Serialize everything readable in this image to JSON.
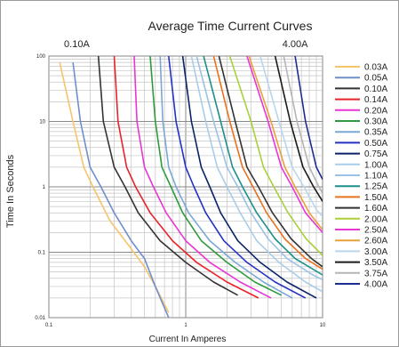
{
  "chart_data": {
    "type": "line",
    "title": "Average Time Current Curves",
    "xlabel": "Current In Amperes",
    "ylabel": "Time In Seconds",
    "xscale": "log",
    "yscale": "log",
    "xlim": [
      0.1,
      10
    ],
    "ylim": [
      0.01,
      100
    ],
    "x_ticks": [
      "0.1",
      "1",
      "10"
    ],
    "y_ticks": [
      "100",
      "10",
      "1",
      "0.1",
      "0.01"
    ],
    "grid": true,
    "legend_position": "right",
    "annotations": [
      {
        "text": "0.10A",
        "x": 0.16
      },
      {
        "text": "4.00A",
        "x": 6.3
      }
    ],
    "series": [
      {
        "name": "0.03A",
        "color": "#f7c36b",
        "x": [
          0.12,
          0.15,
          0.18,
          0.21,
          0.28,
          0.38,
          0.5,
          0.6,
          0.75
        ],
        "y": [
          80,
          10,
          2,
          1,
          0.3,
          0.13,
          0.06,
          0.03,
          0.012
        ]
      },
      {
        "name": "0.05A",
        "color": "#6f8fcc",
        "x": [
          0.15,
          0.17,
          0.2,
          0.24,
          0.3,
          0.4,
          0.5,
          0.6,
          0.75
        ],
        "y": [
          80,
          10,
          2,
          1,
          0.4,
          0.15,
          0.08,
          0.03,
          0.01
        ]
      },
      {
        "name": "0.10A",
        "color": "#333333",
        "x": [
          0.23,
          0.25,
          0.3,
          0.36,
          0.45,
          0.65,
          1.0,
          1.6,
          2.4
        ],
        "y": [
          100,
          10,
          2,
          1,
          0.4,
          0.15,
          0.07,
          0.035,
          0.022
        ]
      },
      {
        "name": "0.14A",
        "color": "#e8232a",
        "x": [
          0.3,
          0.32,
          0.37,
          0.43,
          0.55,
          0.8,
          1.2,
          2.0,
          3.4
        ],
        "y": [
          100,
          10,
          2,
          1,
          0.4,
          0.15,
          0.07,
          0.035,
          0.02
        ]
      },
      {
        "name": "0.20A",
        "color": "#e935d4",
        "x": [
          0.42,
          0.44,
          0.5,
          0.58,
          0.72,
          1.0,
          1.5,
          2.5,
          4.2
        ],
        "y": [
          100,
          10,
          2,
          1,
          0.4,
          0.15,
          0.07,
          0.035,
          0.02
        ]
      },
      {
        "name": "0.30A",
        "color": "#2f9a3c",
        "x": [
          0.55,
          0.6,
          0.67,
          0.78,
          0.95,
          1.3,
          2.0,
          3.2,
          5.0
        ],
        "y": [
          100,
          10,
          2,
          1,
          0.4,
          0.15,
          0.07,
          0.035,
          0.022
        ]
      },
      {
        "name": "0.35A",
        "color": "#7aa7d6",
        "x": [
          0.65,
          0.68,
          0.75,
          0.85,
          1.05,
          1.5,
          2.3,
          3.7,
          6.0
        ],
        "y": [
          100,
          10,
          2,
          1,
          0.4,
          0.15,
          0.07,
          0.035,
          0.02
        ]
      },
      {
        "name": "0.50A",
        "color": "#2431c4",
        "x": [
          0.75,
          0.85,
          1.0,
          1.15,
          1.4,
          1.9,
          2.8,
          4.5,
          7.5
        ],
        "y": [
          100,
          10,
          2,
          1,
          0.4,
          0.15,
          0.07,
          0.035,
          0.02
        ]
      },
      {
        "name": "0.75A",
        "color": "#0b2266",
        "x": [
          0.95,
          1.1,
          1.3,
          1.5,
          1.8,
          2.4,
          3.5,
          5.5,
          9.0
        ],
        "y": [
          100,
          10,
          2,
          1,
          0.4,
          0.15,
          0.07,
          0.035,
          0.02
        ]
      },
      {
        "name": "1.00A",
        "color": "#a8cde8",
        "x": [
          1.1,
          1.4,
          1.7,
          2.0,
          2.5,
          3.3,
          4.8,
          7.5,
          10
        ],
        "y": [
          100,
          10,
          2,
          1,
          0.4,
          0.15,
          0.07,
          0.035,
          0.025
        ]
      },
      {
        "name": "1.10A",
        "color": "#9bc2e6",
        "x": [
          1.2,
          1.6,
          2.0,
          2.4,
          3.0,
          4.0,
          5.5,
          8.5,
          10
        ],
        "y": [
          100,
          10,
          2,
          1,
          0.4,
          0.16,
          0.08,
          0.045,
          0.038
        ]
      },
      {
        "name": "1.25A",
        "color": "#1b8f88",
        "x": [
          1.35,
          1.8,
          2.2,
          2.6,
          3.3,
          4.5,
          6.3,
          10
        ],
        "y": [
          100,
          10,
          2,
          1,
          0.4,
          0.16,
          0.08,
          0.045
        ]
      },
      {
        "name": "1.50A",
        "color": "#e9721f",
        "x": [
          1.6,
          2.1,
          2.6,
          3.1,
          3.9,
          5.3,
          7.5,
          10
        ],
        "y": [
          100,
          10,
          2,
          1,
          0.4,
          0.16,
          0.08,
          0.055
        ]
      },
      {
        "name": "1.60A",
        "color": "#333333",
        "x": [
          1.75,
          2.3,
          2.8,
          3.4,
          4.3,
          5.9,
          8.3,
          10
        ],
        "y": [
          100,
          10,
          2,
          1,
          0.4,
          0.16,
          0.08,
          0.06
        ]
      },
      {
        "name": "2.00A",
        "color": "#a9cf3b",
        "x": [
          2.1,
          3.0,
          3.7,
          4.4,
          5.6,
          7.6,
          10
        ],
        "y": [
          100,
          10,
          2,
          1,
          0.4,
          0.16,
          0.09
        ]
      },
      {
        "name": "2.50A",
        "color": "#e935d4",
        "x": [
          2.8,
          4.0,
          5.0,
          6.0,
          7.5,
          10
        ],
        "y": [
          100,
          10,
          2,
          1,
          0.4,
          0.2
        ]
      },
      {
        "name": "2.60A",
        "color": "#e9a13a",
        "x": [
          2.9,
          4.2,
          5.3,
          6.3,
          8.0,
          10
        ],
        "y": [
          100,
          10,
          2,
          1,
          0.4,
          0.22
        ]
      },
      {
        "name": "3.00A",
        "color": "#b8d6ee",
        "x": [
          3.5,
          4.8,
          6.0,
          7.3,
          9.0,
          10
        ],
        "y": [
          100,
          10,
          2,
          1,
          0.45,
          0.35
        ]
      },
      {
        "name": "3.50A",
        "color": "#1a1a1a",
        "x": [
          4.5,
          5.8,
          7.2,
          8.6,
          10
        ],
        "y": [
          100,
          10,
          2,
          1,
          0.6
        ]
      },
      {
        "name": "3.75A",
        "color": "#b5b5b5",
        "x": [
          5.2,
          6.5,
          8.0,
          9.4,
          10
        ],
        "y": [
          100,
          10,
          2,
          1,
          0.8
        ]
      },
      {
        "name": "4.00A",
        "color": "#1c2d8f",
        "x": [
          6.3,
          7.5,
          9.0,
          10
        ],
        "y": [
          100,
          10,
          2,
          1.3
        ]
      }
    ]
  }
}
